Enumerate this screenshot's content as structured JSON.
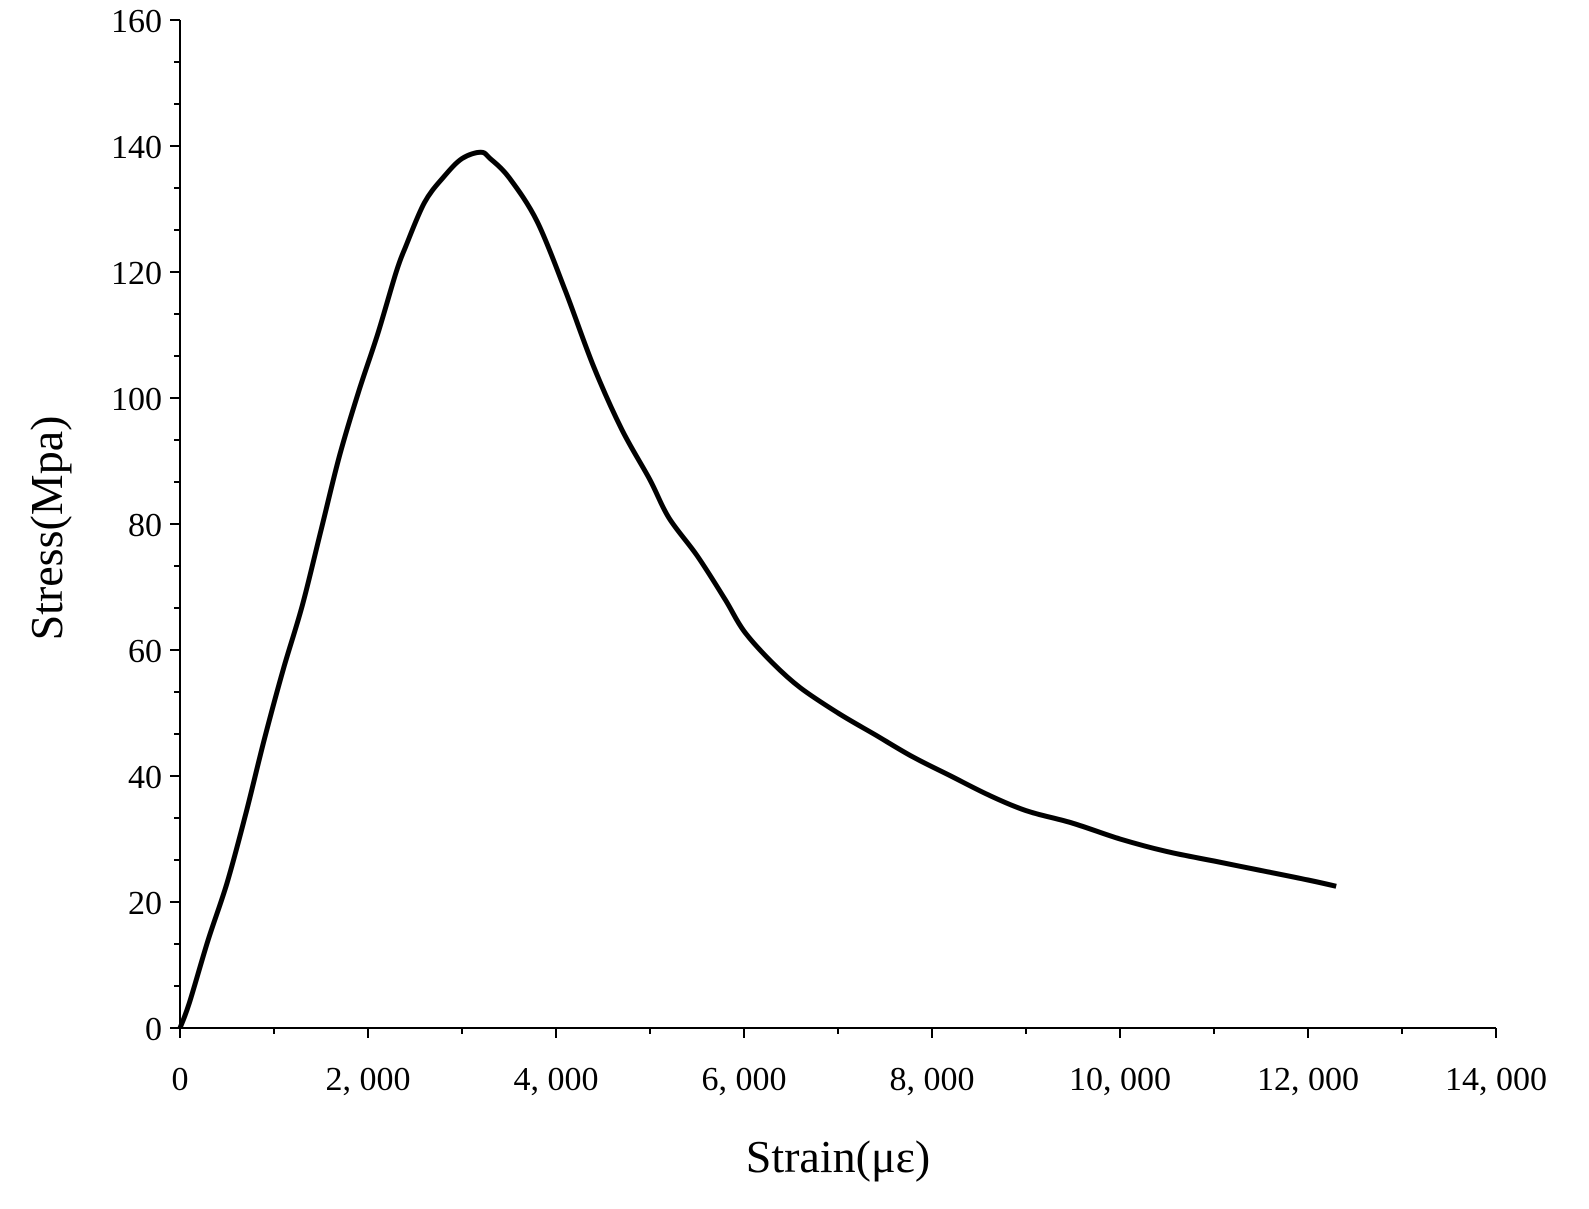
{
  "chart_data": {
    "type": "line",
    "title": "",
    "xlabel": "Strain(με)",
    "ylabel": "Stress(Mpa)",
    "xlim": [
      0,
      14000
    ],
    "ylim": [
      0,
      160
    ],
    "x_ticks": [
      0,
      2000,
      4000,
      6000,
      8000,
      10000,
      12000,
      14000
    ],
    "x_tick_labels": [
      "0",
      "2, 000",
      "4, 000",
      "6, 000",
      "8, 000",
      "10, 000",
      "12, 000",
      "14, 000"
    ],
    "y_ticks": [
      0,
      20,
      40,
      60,
      80,
      100,
      120,
      140,
      160
    ],
    "y_tick_labels": [
      "0",
      "20",
      "40",
      "60",
      "80",
      "100",
      "120",
      "140",
      "160"
    ],
    "grid": false,
    "legend": "none",
    "series": [
      {
        "color": "#000000",
        "x": [
          0,
          100,
          300,
          500,
          700,
          900,
          1100,
          1300,
          1500,
          1700,
          1900,
          2100,
          2300,
          2400,
          2600,
          2800,
          3000,
          3200,
          3300,
          3500,
          3800,
          4100,
          4400,
          4700,
          5000,
          5200,
          5500,
          5800,
          6000,
          6300,
          6600,
          7000,
          7400,
          7800,
          8200,
          8600,
          9000,
          9500,
          10000,
          10500,
          11000,
          11500,
          12000,
          12300
        ],
        "y": [
          0,
          4,
          14,
          23,
          34,
          46,
          57,
          67,
          79,
          91,
          101,
          110,
          120,
          124,
          131,
          135,
          138,
          139,
          138,
          135,
          128,
          117,
          105,
          95,
          87,
          81,
          75,
          68,
          63,
          58,
          54,
          50,
          46.5,
          43,
          40,
          37,
          34.5,
          32.5,
          30,
          28,
          26.5,
          25,
          23.5,
          22.5
        ]
      }
    ]
  }
}
